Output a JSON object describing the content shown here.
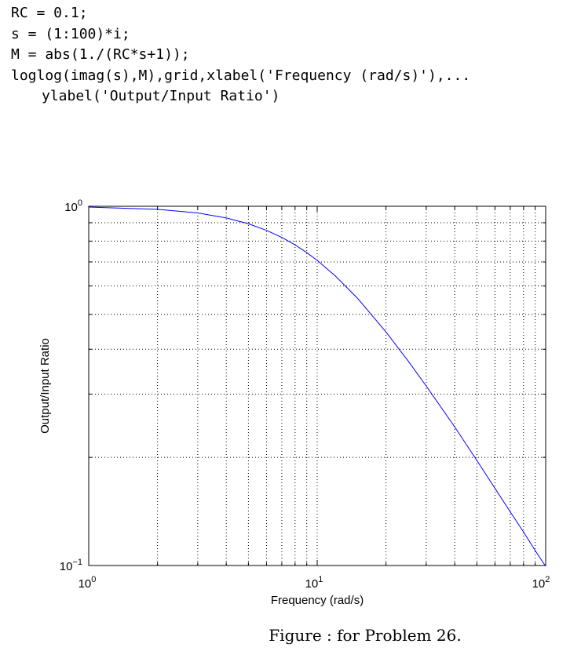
{
  "code": {
    "lines": [
      "RC = 0.1;",
      "s = (1:100)*i;",
      "M = abs(1./(RC*s+1));",
      "loglog(imag(s),M),grid,xlabel('Frequency (rad/s)'),...",
      "ylabel('Output/Input Ratio')"
    ]
  },
  "chart_data": {
    "type": "line",
    "title": "",
    "xlabel": "Frequency (rad/s)",
    "ylabel": "Output/Input Ratio",
    "xscale": "log",
    "yscale": "log",
    "xlim": [
      1,
      100
    ],
    "ylim": [
      0.1,
      1
    ],
    "grid": true,
    "legend": "none",
    "xticks": [
      {
        "value": 1,
        "base": "10",
        "exp": "0"
      },
      {
        "value": 10,
        "base": "10",
        "exp": "1"
      },
      {
        "value": 100,
        "base": "10",
        "exp": "2"
      }
    ],
    "yticks": [
      {
        "value": 0.1,
        "base": "10",
        "exp": "−1"
      },
      {
        "value": 1,
        "base": "10",
        "exp": "0"
      }
    ],
    "series": [
      {
        "color": "#0000ff",
        "x": [
          1,
          2,
          3,
          4,
          5,
          6,
          7,
          8,
          9,
          10,
          12,
          15,
          20,
          25,
          30,
          40,
          50,
          60,
          70,
          80,
          90,
          100
        ],
        "y": [
          0.995,
          0.981,
          0.958,
          0.928,
          0.894,
          0.857,
          0.819,
          0.781,
          0.743,
          0.707,
          0.64,
          0.555,
          0.447,
          0.371,
          0.316,
          0.243,
          0.196,
          0.164,
          0.141,
          0.124,
          0.11,
          0.0995
        ]
      }
    ]
  },
  "caption": "Figure :  for Problem 26."
}
